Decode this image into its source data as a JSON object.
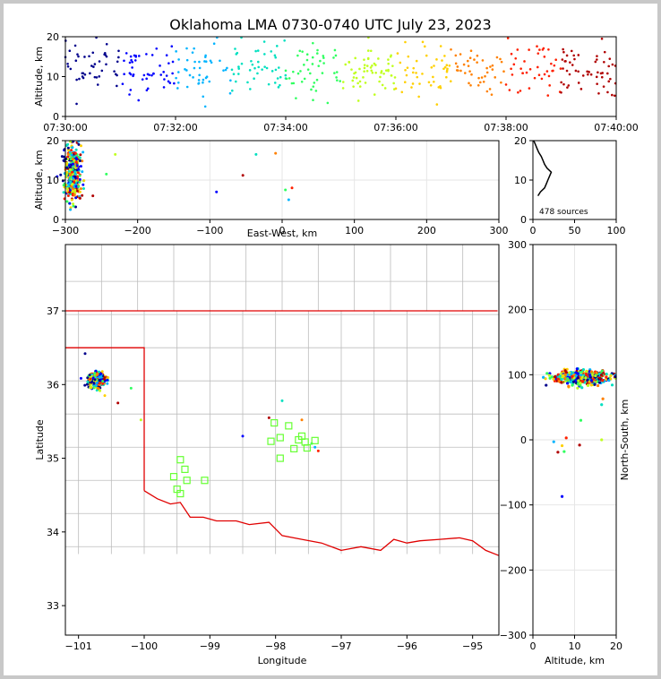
{
  "chart_data": {
    "type": "scatter",
    "title": "Oklahoma LMA 0730-0740 UTC July 23, 2023",
    "colors": {
      "frame": "#000000",
      "grid": "#e6e6e6",
      "county_line": "#bdbdbd",
      "state_line": "#e00000",
      "station_marker": "#66ff33",
      "histogram": "#000000",
      "time_color_ramp": [
        "#00008c",
        "#0000ff",
        "#00b4ff",
        "#00e0c0",
        "#30ff60",
        "#c0ff20",
        "#ffd000",
        "#ff8000",
        "#ff2000",
        "#b00000"
      ]
    },
    "panels": {
      "time_height": {
        "ylabel": "Altitude, km",
        "xlim": [
          "07:30:00",
          "07:40:00"
        ],
        "ylim": [
          0,
          20
        ],
        "xticks": [
          "07:30:00",
          "07:32:00",
          "07:34:00",
          "07:36:00",
          "07:38:00",
          "07:40:00"
        ],
        "yticks": [
          "0",
          "10",
          "20"
        ]
      },
      "ew_height": {
        "xlabel": "East-West, km",
        "ylabel": "Altitude, km",
        "xlim": [
          -300,
          300
        ],
        "ylim": [
          0,
          20
        ],
        "xticks": [
          "−300",
          "−200",
          "−100",
          "0",
          "100",
          "200",
          "300"
        ],
        "yticks": [
          "0",
          "10",
          "20"
        ],
        "grid": true
      },
      "altitude_histogram": {
        "annotation": "478 sources",
        "xlim": [
          0,
          100
        ],
        "ylim": [
          0,
          20
        ],
        "xticks": [
          "0",
          "50",
          "100"
        ],
        "yticks": [
          "0",
          "10",
          "20"
        ],
        "counts_per_km": [
          [
            6,
            6
          ],
          [
            7,
            9
          ],
          [
            8,
            14
          ],
          [
            9,
            16
          ],
          [
            10,
            18
          ],
          [
            11,
            20
          ],
          [
            12,
            22
          ],
          [
            13,
            17
          ],
          [
            14,
            14
          ],
          [
            15,
            12
          ],
          [
            16,
            10
          ],
          [
            17,
            7
          ],
          [
            18,
            5
          ],
          [
            19,
            3
          ],
          [
            20,
            1
          ]
        ]
      },
      "plan_view": {
        "xlabel": "Longitude",
        "ylabel": "Latitude",
        "xlim": [
          -101.2,
          -94.6
        ],
        "ylim": [
          32.6,
          37.9
        ],
        "xticks": [
          "−101",
          "−100",
          "−99",
          "−98",
          "−97",
          "−96",
          "−95"
        ],
        "yticks": [
          "33",
          "34",
          "35",
          "36",
          "37"
        ]
      },
      "ns_height": {
        "xlabel": "Altitude, km",
        "ylabel": "North-South, km",
        "xlim": [
          0,
          20
        ],
        "ylim": [
          -300,
          300
        ],
        "xticks": [
          "0",
          "10",
          "20"
        ],
        "yticks": [
          "−300",
          "−200",
          "−100",
          "0",
          "100",
          "200",
          "300"
        ],
        "grid": true
      }
    },
    "stations": [
      {
        "lon": -99.45,
        "lat": 34.98
      },
      {
        "lon": -99.38,
        "lat": 34.85
      },
      {
        "lon": -99.35,
        "lat": 34.7
      },
      {
        "lon": -99.55,
        "lat": 34.75
      },
      {
        "lon": -99.5,
        "lat": 34.58
      },
      {
        "lon": -99.45,
        "lat": 34.52
      },
      {
        "lon": -99.08,
        "lat": 34.7
      },
      {
        "lon": -98.07,
        "lat": 35.23
      },
      {
        "lon": -98.02,
        "lat": 35.48
      },
      {
        "lon": -97.93,
        "lat": 35.28
      },
      {
        "lon": -97.8,
        "lat": 35.44
      },
      {
        "lon": -97.93,
        "lat": 35.0
      },
      {
        "lon": -97.72,
        "lat": 35.13
      },
      {
        "lon": -97.65,
        "lat": 35.25
      },
      {
        "lon": -97.52,
        "lat": 35.14
      },
      {
        "lon": -97.4,
        "lat": 35.24
      },
      {
        "lon": -97.55,
        "lat": 35.22
      },
      {
        "lon": -97.6,
        "lat": 35.3
      }
    ],
    "outlier_sources": [
      {
        "t": 0.05,
        "lon": -100.9,
        "lat": 36.42,
        "alt": 16.0,
        "ns": 88
      },
      {
        "t": 0.4,
        "lon": -100.2,
        "lat": 35.95,
        "alt": 11.5,
        "ns": 30
      },
      {
        "t": 0.55,
        "lon": -100.05,
        "lat": 35.52,
        "alt": 16.5,
        "ns": 0
      },
      {
        "t": 0.6,
        "lon": -100.6,
        "lat": 35.85,
        "alt": 7.0,
        "ns": -9
      },
      {
        "t": 0.9,
        "lon": -100.4,
        "lat": 35.75,
        "alt": 6.0,
        "ns": -19
      },
      {
        "t": 0.95,
        "lon": -98.1,
        "lat": 35.55,
        "alt": 11.2,
        "ns": -8
      },
      {
        "t": 0.35,
        "lon": -97.9,
        "lat": 35.78,
        "alt": 16.5,
        "ns": 54
      },
      {
        "t": 0.7,
        "lon": -97.6,
        "lat": 35.52,
        "alt": 16.8,
        "ns": 63
      },
      {
        "t": 0.15,
        "lon": -98.5,
        "lat": 35.3,
        "alt": 7.0,
        "ns": -87
      },
      {
        "t": 0.25,
        "lon": -97.4,
        "lat": 35.15,
        "alt": 5.0,
        "ns": -3
      },
      {
        "t": 0.45,
        "lon": -97.45,
        "lat": 35.2,
        "alt": 7.5,
        "ns": -18
      },
      {
        "t": 0.8,
        "lon": -97.35,
        "lat": 35.1,
        "alt": 8.0,
        "ns": 3
      }
    ]
  }
}
